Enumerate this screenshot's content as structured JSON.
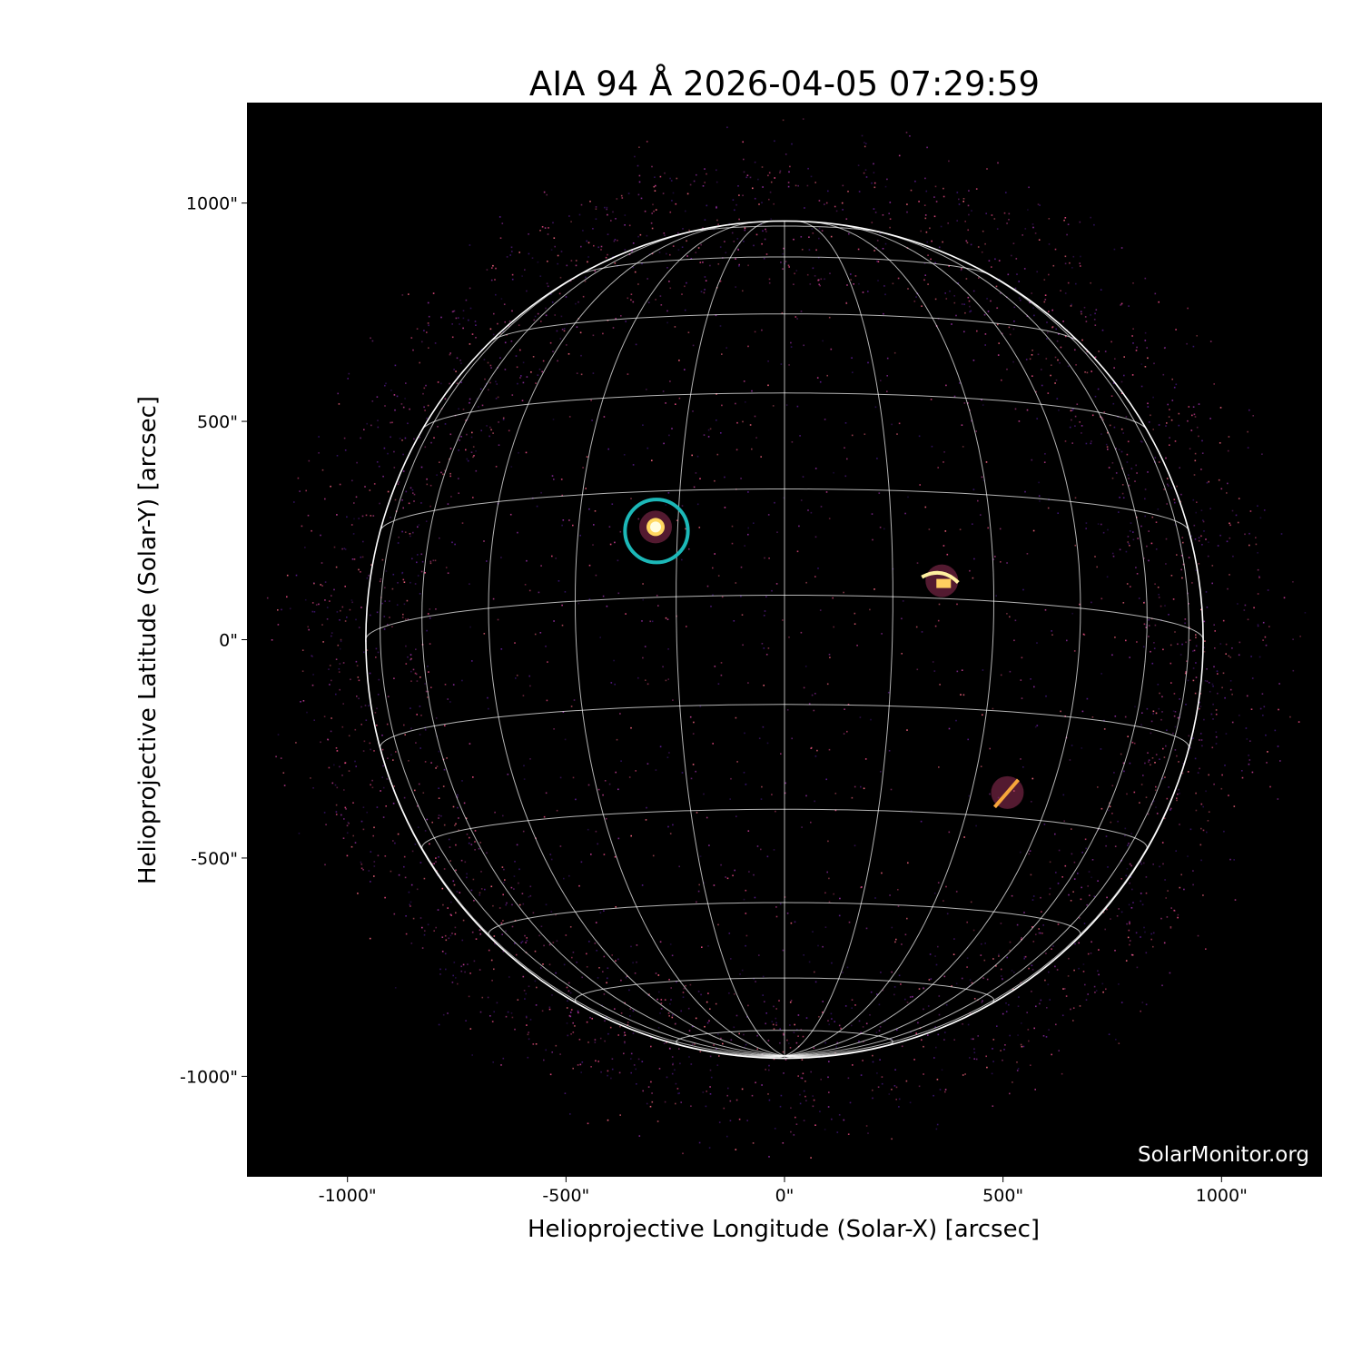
{
  "chart_data": {
    "type": "image",
    "title": "AIA 94 Å 2026-04-05 07:29:59",
    "xlabel": "Helioprojective Longitude (Solar-X) [arcsec]",
    "ylabel": "Helioprojective Latitude (Solar-Y) [arcsec]",
    "xlim": [
      -1230,
      1230
    ],
    "ylim": [
      -1230,
      1230
    ],
    "x_ticks": [
      {
        "value": -1000,
        "label": "-1000\""
      },
      {
        "value": -500,
        "label": "-500\""
      },
      {
        "value": 0,
        "label": "0\""
      },
      {
        "value": 500,
        "label": "500\""
      },
      {
        "value": 1000,
        "label": "1000\""
      }
    ],
    "y_ticks": [
      {
        "value": 1000,
        "label": "1000\""
      },
      {
        "value": 500,
        "label": "500\""
      },
      {
        "value": 0,
        "label": "0\""
      },
      {
        "value": -500,
        "label": "-500\""
      },
      {
        "value": -1000,
        "label": "-1000\""
      }
    ],
    "solar_radius_arcsec": 958,
    "heliographic_grid_spacing_deg": 15,
    "colormap": "inferno-like (black-purple-pink-yellow)",
    "background_color": "#000000",
    "grid_color": "#ffffff",
    "highlight_circle": {
      "x": -293,
      "y": 249,
      "radius_arcsec": 72,
      "color": "#1cb8b8"
    },
    "bright_regions": [
      {
        "x": -295,
        "y": 258
      },
      {
        "x": 360,
        "y": 135
      },
      {
        "x": 510,
        "y": -350
      }
    ],
    "watermark": "SolarMonitor.org"
  }
}
